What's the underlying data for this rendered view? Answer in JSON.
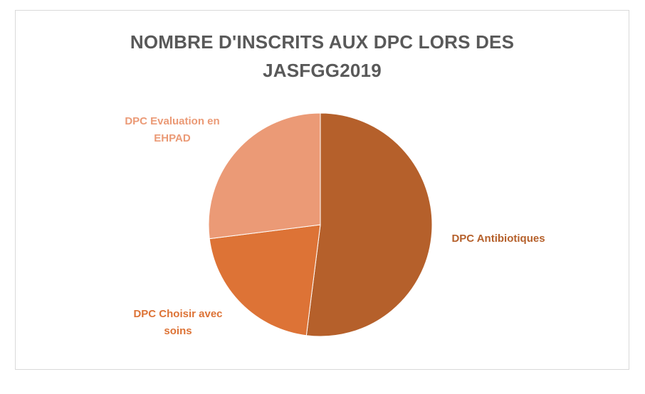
{
  "chart_data": {
    "type": "pie",
    "title": "NOMBRE D'INSCRITS AUX DPC LORS DES JASFGG2019",
    "title_lines": [
      "NOMBRE D'INSCRITS AUX DPC LORS DES",
      "JASFGG2019"
    ],
    "categories": [
      "DPC Antibiotiques",
      "DPC Choisir avec soins",
      "DPC Evaluation en EHPAD"
    ],
    "values": [
      52,
      21,
      27
    ],
    "label_lines": [
      [
        "DPC Antibiotiques"
      ],
      [
        "DPC Choisir avec",
        "soins"
      ],
      [
        "DPC Evaluation en",
        "EHPAD"
      ]
    ],
    "colors": [
      "#b5602b",
      "#dd7336",
      "#eb9a76"
    ],
    "legend": "none",
    "data_labels": "category names outside slices"
  }
}
